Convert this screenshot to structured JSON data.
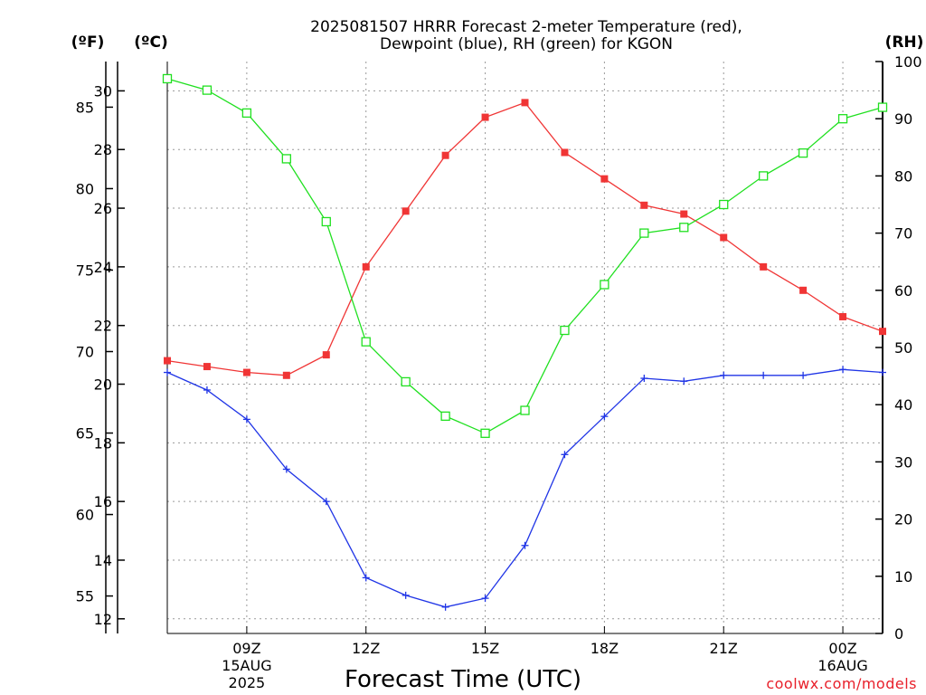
{
  "chart_data": {
    "type": "line",
    "title_line1": "2025081507 HRRR Forecast 2-meter Temperature (red),",
    "title_line2": "Dewpoint (blue), RH (green) for KGON",
    "xlabel": "Forecast Time (UTC)",
    "unit_f": "(ºF)",
    "unit_c": "(ºC)",
    "unit_rh": "(RH)",
    "credit": "coolwx.com/models",
    "x": [
      7,
      8,
      9,
      10,
      11,
      12,
      13,
      14,
      15,
      16,
      17,
      18,
      19,
      20,
      21,
      22,
      23,
      24,
      25
    ],
    "x_ticks": [
      {
        "hour": 9,
        "label": "09Z",
        "sub1": "15AUG",
        "sub2": "2025"
      },
      {
        "hour": 12,
        "label": "12Z",
        "sub1": "",
        "sub2": ""
      },
      {
        "hour": 15,
        "label": "15Z",
        "sub1": "",
        "sub2": ""
      },
      {
        "hour": 18,
        "label": "18Z",
        "sub1": "",
        "sub2": ""
      },
      {
        "hour": 21,
        "label": "21Z",
        "sub1": "",
        "sub2": ""
      },
      {
        "hour": 24,
        "label": "00Z",
        "sub1": "16AUG",
        "sub2": ""
      }
    ],
    "xlim": [
      7,
      25
    ],
    "ylim_c": [
      11.5,
      31.0
    ],
    "ylim_rh": [
      0,
      100
    ],
    "yticks_c": [
      "12",
      "14",
      "16",
      "18",
      "20",
      "22",
      "24",
      "26",
      "28",
      "30"
    ],
    "yticks_f": [
      "55",
      "60",
      "65",
      "70",
      "75",
      "80",
      "85"
    ],
    "yticks_rh": [
      "0",
      "10",
      "20",
      "30",
      "40",
      "50",
      "60",
      "70",
      "80",
      "90",
      "100"
    ],
    "grid": true,
    "series": [
      {
        "key": "temperature",
        "color": "#f03535",
        "marker": "filled-square",
        "axis": "c",
        "values": [
          20.8,
          20.6,
          20.4,
          20.3,
          21.0,
          24.0,
          25.9,
          27.8,
          29.1,
          29.6,
          27.9,
          27.0,
          26.1,
          25.8,
          25.0,
          24.0,
          23.2,
          22.3,
          21.8
        ]
      },
      {
        "key": "dewpoint",
        "color": "#2035e6",
        "marker": "plus",
        "axis": "c",
        "values": [
          20.4,
          19.8,
          18.8,
          17.1,
          16.0,
          13.4,
          12.8,
          12.4,
          12.7,
          14.5,
          17.6,
          18.9,
          20.2,
          20.1,
          20.3,
          20.3,
          20.3,
          20.5,
          20.4
        ]
      },
      {
        "key": "rh",
        "color": "#20e020",
        "marker": "open-square",
        "axis": "rh",
        "values": [
          97,
          95,
          91,
          83,
          72,
          51,
          44,
          38,
          35,
          39,
          53,
          61,
          70,
          71,
          75,
          80,
          84,
          90,
          92
        ]
      }
    ]
  }
}
